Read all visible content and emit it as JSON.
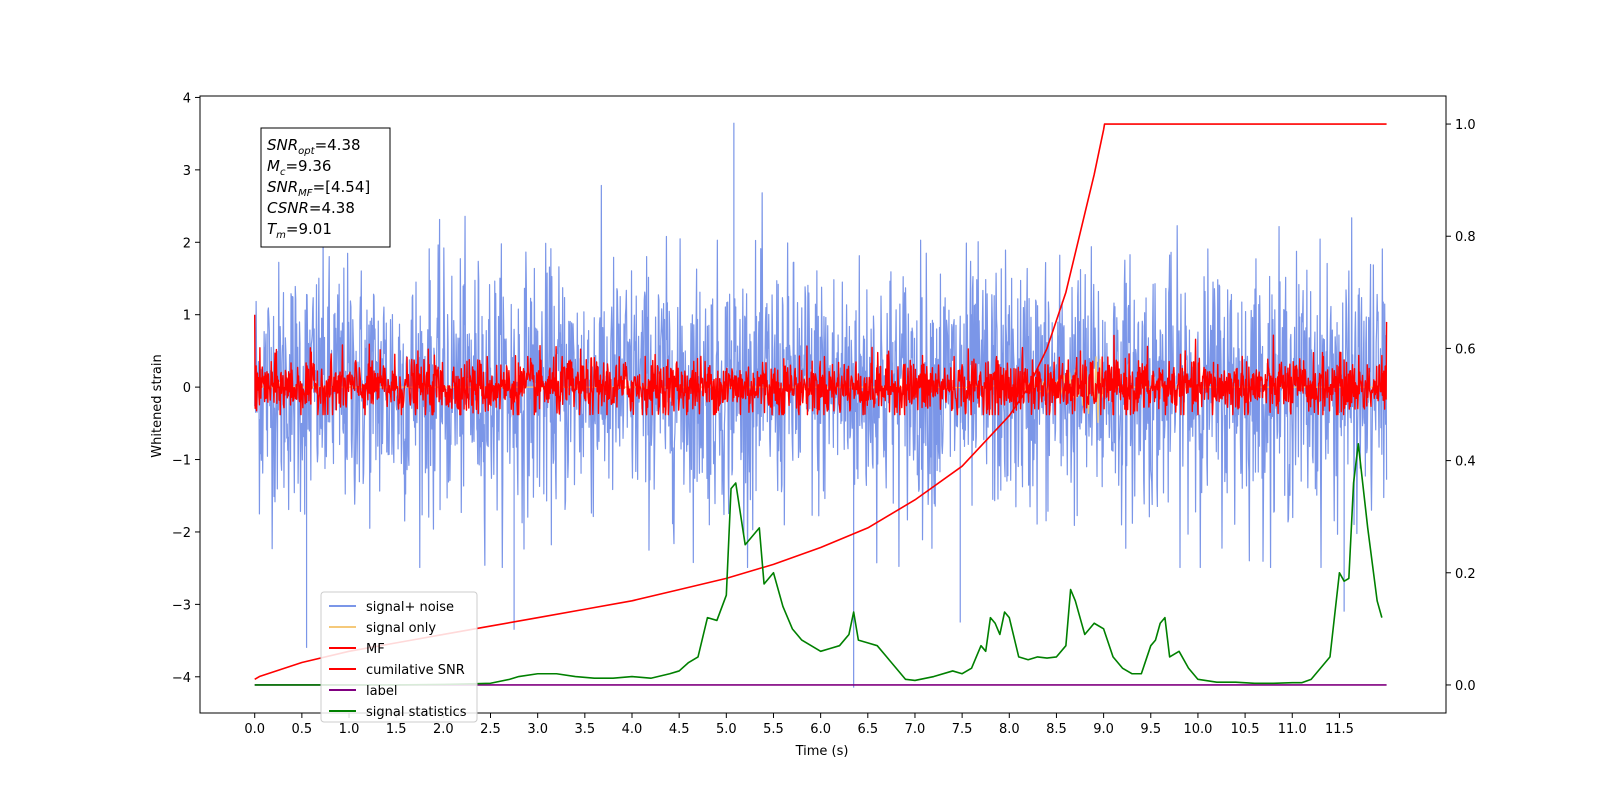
{
  "chart_data": {
    "type": "line",
    "xlabel": "Time (s)",
    "ylabel": "Whitened strain",
    "xlim": [
      -0.58,
      12.63
    ],
    "ylim": [
      -4.5,
      4.02
    ],
    "y2lim": [
      -0.05,
      1.05
    ],
    "grid": false,
    "legend_position": "lower-left",
    "x_ticks": [
      "0.0",
      "0.5",
      "1.0",
      "1.5",
      "2.0",
      "2.5",
      "3.0",
      "3.5",
      "4.0",
      "4.5",
      "5.0",
      "5.5",
      "6.0",
      "6.5",
      "7.0",
      "7.5",
      "8.0",
      "8.5",
      "9.0",
      "9.5",
      "10.0",
      "10.5",
      "11.0",
      "11.5"
    ],
    "x_tick_values": [
      0,
      0.5,
      1,
      1.5,
      2,
      2.5,
      3,
      3.5,
      4,
      4.5,
      5,
      5.5,
      6,
      6.5,
      7,
      7.5,
      8,
      8.5,
      9,
      9.5,
      10,
      10.5,
      11,
      11.5
    ],
    "y_ticks": [
      "4",
      "3",
      "2",
      "1",
      "0",
      "−1",
      "−2",
      "−3",
      "−4"
    ],
    "y_tick_values": [
      4,
      3,
      2,
      1,
      0,
      -1,
      -2,
      -3,
      -4
    ],
    "y2_ticks": [
      "1.0",
      "0.8",
      "0.6",
      "0.4",
      "0.2",
      "0.0"
    ],
    "y2_tick_values": [
      1.0,
      0.8,
      0.6,
      0.4,
      0.2,
      0.0
    ],
    "annotation": {
      "lines": [
        {
          "var": "SNR",
          "sub": "opt",
          "value": "=4.38"
        },
        {
          "var": "M",
          "sub": "c",
          "value": "=9.36"
        },
        {
          "var": "SNR",
          "sub": "MF",
          "value": "=[4.54]"
        },
        {
          "var": "CSNR",
          "sub": "",
          "value": "=4.38"
        },
        {
          "var": "T",
          "sub": "m",
          "value": "=9.01"
        }
      ]
    },
    "series": [
      {
        "name": "signal+ noise",
        "color": "#7b96e8",
        "axis": "left",
        "kind": "noise",
        "x_range": [
          0,
          12.0
        ],
        "mean": 0.0,
        "std": 0.85,
        "min": -4.15,
        "max": 3.65
      },
      {
        "name": "signal only",
        "color": "#f5c97a",
        "axis": "left",
        "kind": "chirp",
        "x_range": [
          0,
          12.0
        ],
        "peak_time": 9.0,
        "peak_amp": 0.6
      },
      {
        "name": "MF",
        "color": "#ff0000",
        "axis": "left",
        "kind": "noise",
        "x_range": [
          0,
          12.0
        ],
        "mean": 0.0,
        "std": 0.2,
        "min": -0.38,
        "max": 1.0
      },
      {
        "name": "cumilative SNR",
        "color": "#ff0000",
        "axis": "right",
        "x": [
          0,
          0.05,
          0.5,
          1,
          1.5,
          2,
          2.5,
          3,
          3.5,
          4,
          4.5,
          5,
          5.5,
          6,
          6.5,
          7,
          7.5,
          8,
          8.2,
          8.4,
          8.6,
          8.7,
          8.8,
          8.9,
          8.95,
          9.0,
          9.01,
          10,
          11,
          12.0
        ],
        "y": [
          0.01,
          0.015,
          0.04,
          0.06,
          0.075,
          0.09,
          0.105,
          0.12,
          0.135,
          0.15,
          0.17,
          0.19,
          0.215,
          0.245,
          0.28,
          0.33,
          0.39,
          0.48,
          0.53,
          0.6,
          0.7,
          0.77,
          0.84,
          0.91,
          0.95,
          0.99,
          1.0,
          1.0,
          1.0,
          1.0
        ]
      },
      {
        "name": "label",
        "color": "#800080",
        "axis": "right",
        "x": [
          0,
          12.0
        ],
        "y": [
          0,
          0
        ]
      },
      {
        "name": "signal statistics",
        "color": "#008000",
        "axis": "right",
        "x": [
          0,
          0.5,
          1,
          1.5,
          2,
          2.3,
          2.5,
          2.7,
          2.8,
          3.0,
          3.2,
          3.4,
          3.6,
          3.8,
          4.0,
          4.2,
          4.4,
          4.5,
          4.6,
          4.7,
          4.8,
          4.9,
          5.0,
          5.05,
          5.1,
          5.2,
          5.3,
          5.35,
          5.4,
          5.5,
          5.6,
          5.7,
          5.8,
          5.9,
          6.0,
          6.1,
          6.2,
          6.3,
          6.35,
          6.4,
          6.5,
          6.6,
          6.7,
          6.8,
          6.9,
          7.0,
          7.2,
          7.4,
          7.5,
          7.6,
          7.7,
          7.75,
          7.8,
          7.85,
          7.9,
          7.95,
          8.0,
          8.1,
          8.2,
          8.3,
          8.4,
          8.5,
          8.6,
          8.65,
          8.7,
          8.8,
          8.9,
          9.0,
          9.1,
          9.2,
          9.3,
          9.4,
          9.5,
          9.55,
          9.6,
          9.65,
          9.7,
          9.8,
          9.9,
          10,
          10.2,
          10.4,
          10.6,
          10.8,
          11.0,
          11.1,
          11.2,
          11.3,
          11.4,
          11.5,
          11.55,
          11.6,
          11.65,
          11.7,
          11.8,
          11.9,
          11.95
        ],
        "y": [
          0.0,
          0.0,
          0.0,
          0.0,
          0.001,
          0.002,
          0.003,
          0.01,
          0.015,
          0.02,
          0.02,
          0.015,
          0.012,
          0.012,
          0.015,
          0.012,
          0.02,
          0.025,
          0.04,
          0.05,
          0.12,
          0.115,
          0.16,
          0.35,
          0.36,
          0.25,
          0.27,
          0.28,
          0.18,
          0.2,
          0.14,
          0.1,
          0.08,
          0.07,
          0.06,
          0.065,
          0.07,
          0.09,
          0.13,
          0.08,
          0.075,
          0.07,
          0.05,
          0.03,
          0.01,
          0.008,
          0.015,
          0.025,
          0.02,
          0.03,
          0.07,
          0.06,
          0.12,
          0.11,
          0.09,
          0.13,
          0.12,
          0.05,
          0.045,
          0.05,
          0.048,
          0.05,
          0.07,
          0.17,
          0.15,
          0.09,
          0.11,
          0.1,
          0.05,
          0.03,
          0.02,
          0.02,
          0.07,
          0.08,
          0.11,
          0.12,
          0.05,
          0.06,
          0.03,
          0.01,
          0.005,
          0.005,
          0.003,
          0.003,
          0.004,
          0.004,
          0.01,
          0.03,
          0.05,
          0.2,
          0.185,
          0.19,
          0.36,
          0.43,
          0.28,
          0.15,
          0.12
        ]
      }
    ]
  }
}
